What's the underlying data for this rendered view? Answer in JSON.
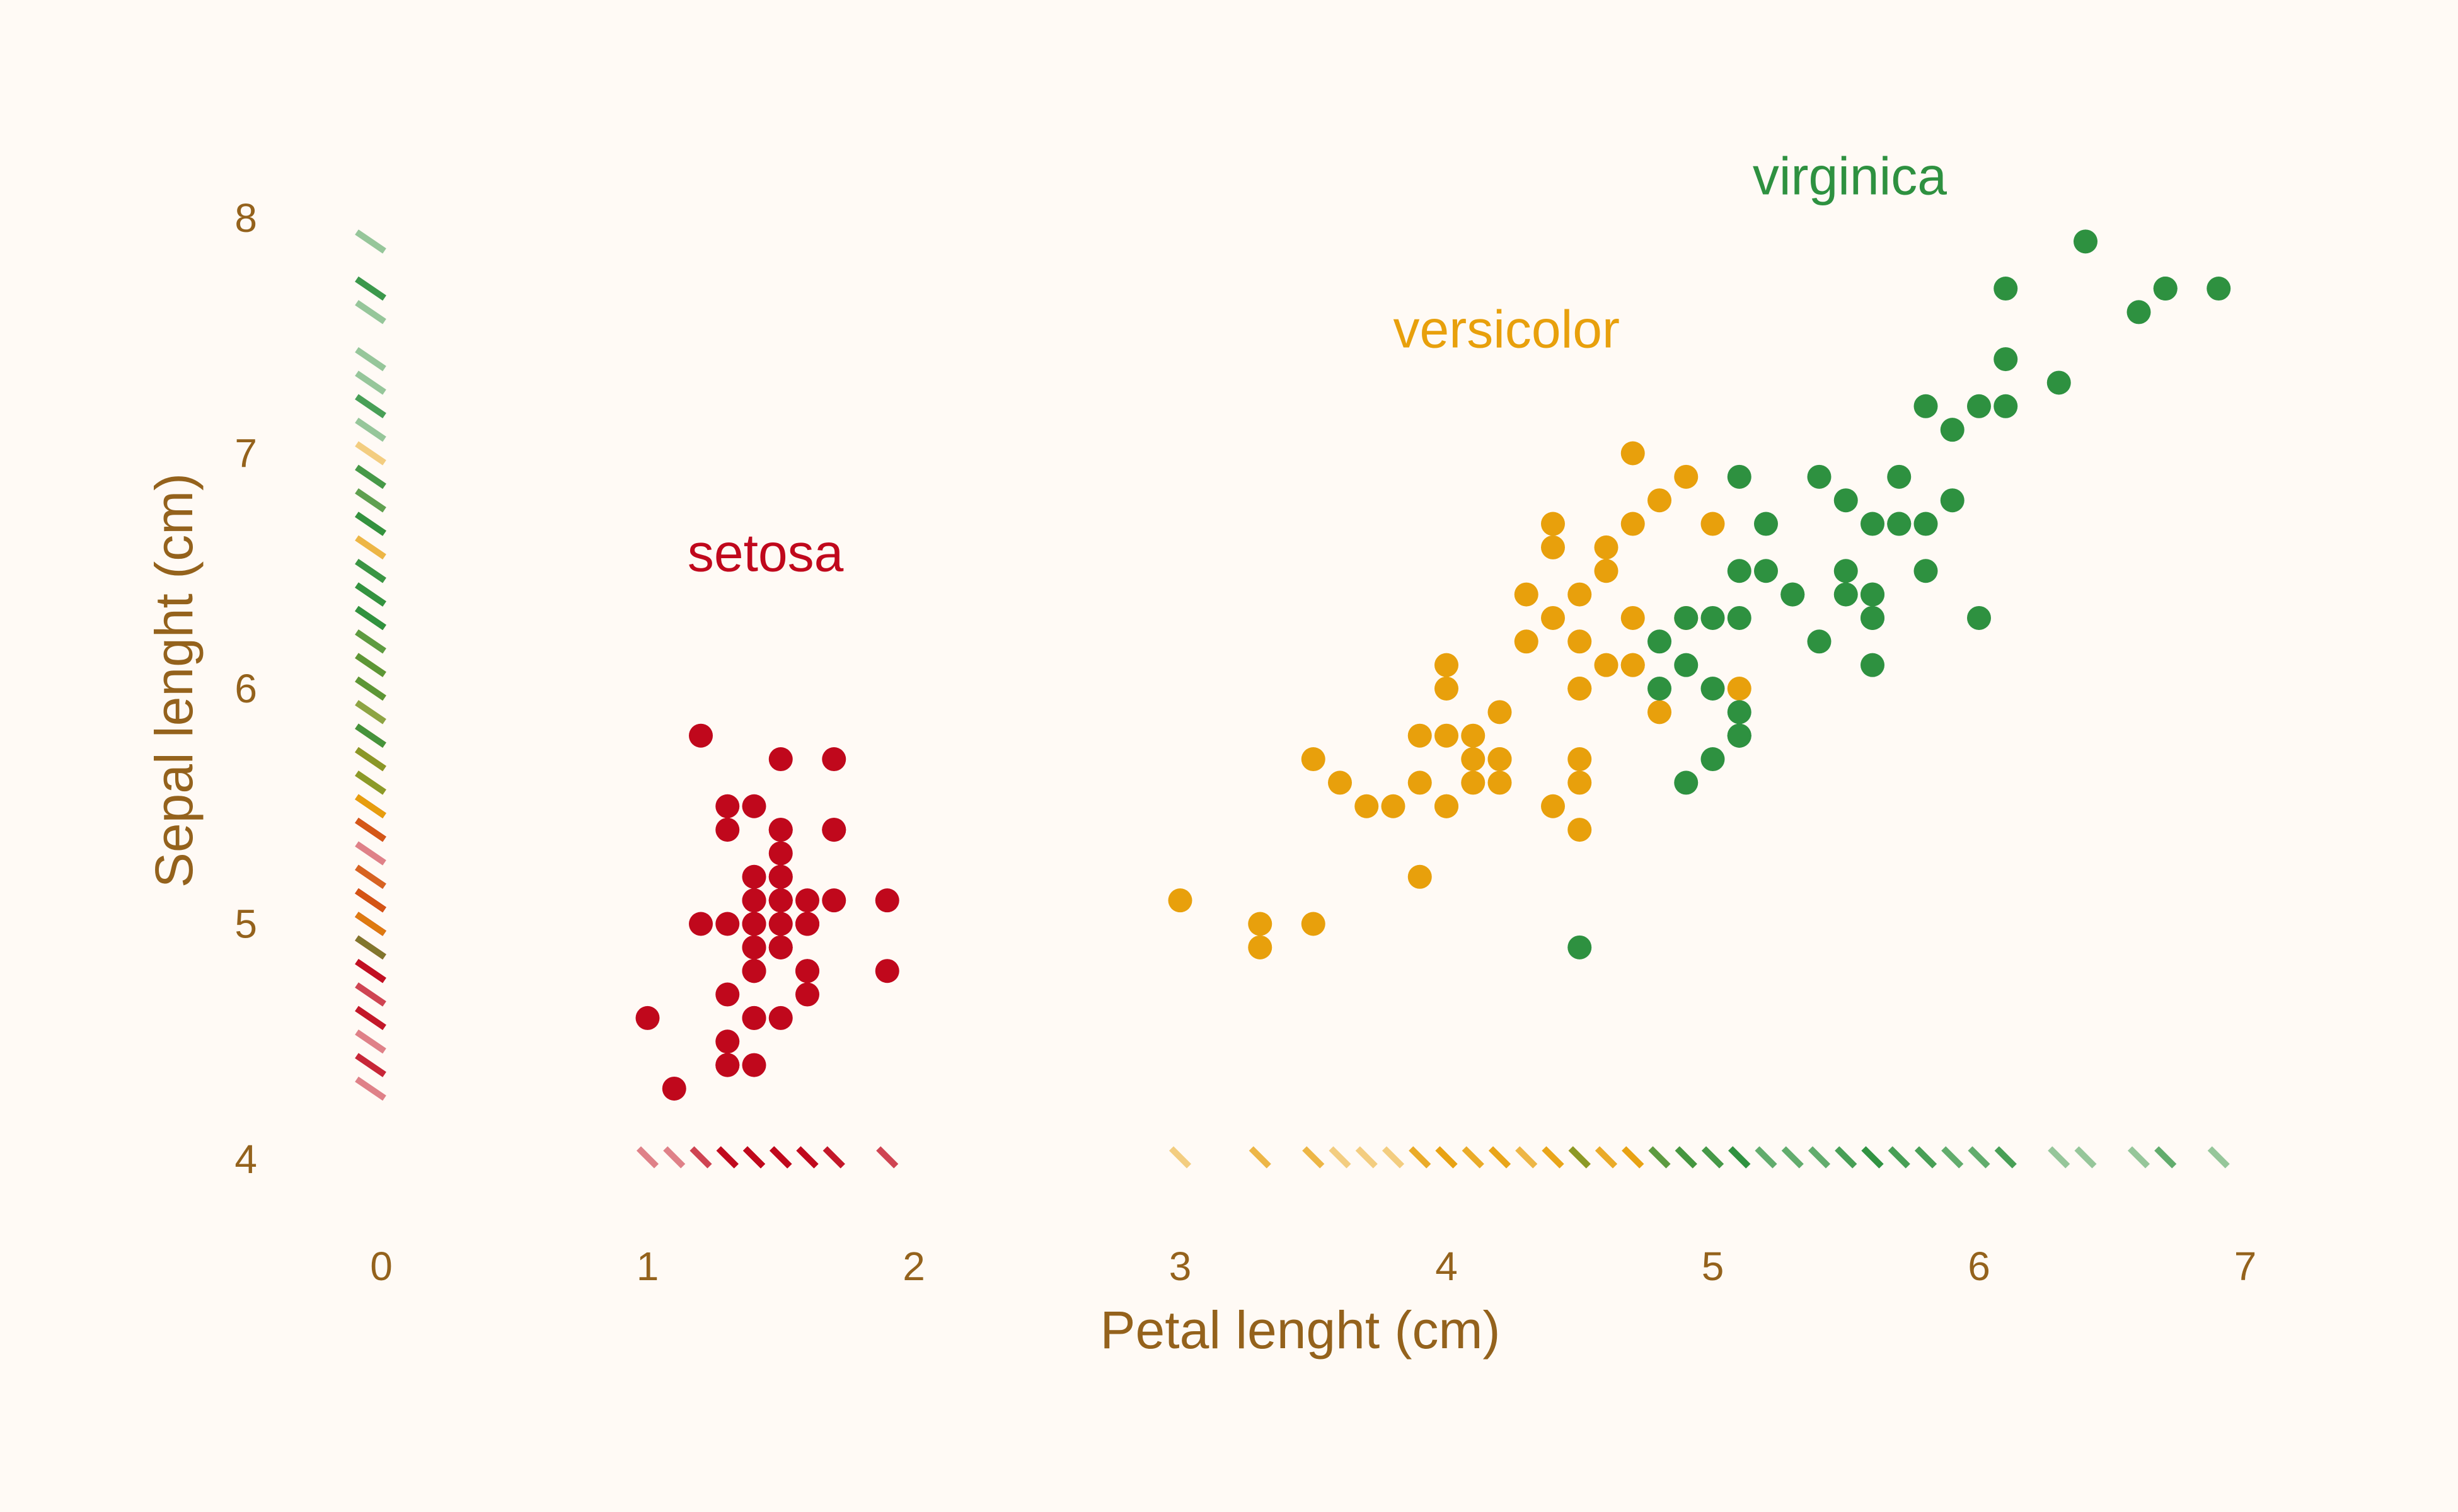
{
  "chart_data": {
    "type": "scatter",
    "title": "",
    "xlabel": "Petal lenght (cm)",
    "ylabel": "Sepal lenght (cm)",
    "xlim": [
      0,
      7
    ],
    "ylim": [
      4,
      8
    ],
    "xticks": [
      0,
      1,
      2,
      3,
      4,
      5,
      6,
      7
    ],
    "yticks": [
      4,
      5,
      6,
      7,
      8
    ],
    "grid": false,
    "legend": "none (direct labels)",
    "rug": true,
    "series": [
      {
        "name": "setosa",
        "color": "#c0081c",
        "label_pos": [
          1.15,
          6.5
        ],
        "points": [
          [
            1.4,
            5.1
          ],
          [
            1.4,
            4.9
          ],
          [
            1.3,
            4.7
          ],
          [
            1.5,
            4.6
          ],
          [
            1.4,
            5.0
          ],
          [
            1.7,
            5.4
          ],
          [
            1.4,
            4.6
          ],
          [
            1.5,
            5.0
          ],
          [
            1.4,
            4.4
          ],
          [
            1.5,
            4.9
          ],
          [
            1.5,
            5.4
          ],
          [
            1.6,
            4.8
          ],
          [
            1.4,
            4.8
          ],
          [
            1.1,
            4.3
          ],
          [
            1.2,
            5.8
          ],
          [
            1.5,
            5.7
          ],
          [
            1.3,
            5.4
          ],
          [
            1.4,
            5.1
          ],
          [
            1.7,
            5.7
          ],
          [
            1.5,
            5.1
          ],
          [
            1.7,
            5.4
          ],
          [
            1.5,
            5.1
          ],
          [
            1.0,
            4.6
          ],
          [
            1.7,
            5.1
          ],
          [
            1.9,
            4.8
          ],
          [
            1.6,
            5.0
          ],
          [
            1.6,
            5.0
          ],
          [
            1.5,
            5.2
          ],
          [
            1.4,
            5.2
          ],
          [
            1.6,
            4.7
          ],
          [
            1.6,
            4.8
          ],
          [
            1.5,
            5.4
          ],
          [
            1.5,
            5.2
          ],
          [
            1.4,
            5.5
          ],
          [
            1.5,
            4.9
          ],
          [
            1.2,
            5.0
          ],
          [
            1.3,
            5.5
          ],
          [
            1.4,
            4.9
          ],
          [
            1.3,
            4.4
          ],
          [
            1.5,
            5.1
          ],
          [
            1.3,
            5.0
          ],
          [
            1.3,
            4.5
          ],
          [
            1.3,
            4.4
          ],
          [
            1.6,
            5.0
          ],
          [
            1.9,
            5.1
          ],
          [
            1.4,
            4.8
          ],
          [
            1.6,
            5.1
          ],
          [
            1.4,
            4.6
          ],
          [
            1.5,
            5.3
          ],
          [
            1.4,
            5.0
          ]
        ]
      },
      {
        "name": "versicolor",
        "color": "#e8a00c",
        "label_pos": [
          3.8,
          7.45
        ],
        "points": [
          [
            4.7,
            7.0
          ],
          [
            4.5,
            6.4
          ],
          [
            4.9,
            6.9
          ],
          [
            4.0,
            5.5
          ],
          [
            4.6,
            6.5
          ],
          [
            4.5,
            5.7
          ],
          [
            4.7,
            6.3
          ],
          [
            3.3,
            4.9
          ],
          [
            4.6,
            6.6
          ],
          [
            3.9,
            5.2
          ],
          [
            3.5,
            5.0
          ],
          [
            4.2,
            5.9
          ],
          [
            4.0,
            6.0
          ],
          [
            4.7,
            6.1
          ],
          [
            3.6,
            5.6
          ],
          [
            4.4,
            6.7
          ],
          [
            4.5,
            5.6
          ],
          [
            4.1,
            5.8
          ],
          [
            4.5,
            6.2
          ],
          [
            3.9,
            5.6
          ],
          [
            4.8,
            5.9
          ],
          [
            4.0,
            6.1
          ],
          [
            4.9,
            6.3
          ],
          [
            4.7,
            6.1
          ],
          [
            4.3,
            6.4
          ],
          [
            4.4,
            6.6
          ],
          [
            4.8,
            6.8
          ],
          [
            5.0,
            6.7
          ],
          [
            4.5,
            6.0
          ],
          [
            3.5,
            5.7
          ],
          [
            3.8,
            5.5
          ],
          [
            3.7,
            5.5
          ],
          [
            3.9,
            5.8
          ],
          [
            5.1,
            6.0
          ],
          [
            4.5,
            5.4
          ],
          [
            4.5,
            6.0
          ],
          [
            4.7,
            6.7
          ],
          [
            4.4,
            6.3
          ],
          [
            4.1,
            5.6
          ],
          [
            4.0,
            5.5
          ],
          [
            4.4,
            5.5
          ],
          [
            4.6,
            6.1
          ],
          [
            4.0,
            5.8
          ],
          [
            3.3,
            5.0
          ],
          [
            4.2,
            5.6
          ],
          [
            4.2,
            5.7
          ],
          [
            4.2,
            5.7
          ],
          [
            4.3,
            6.2
          ],
          [
            3.0,
            5.1
          ],
          [
            4.1,
            5.7
          ]
        ]
      },
      {
        "name": "virginica",
        "color": "#2e9140",
        "label_pos": [
          5.15,
          8.1
        ],
        "points": [
          [
            6.0,
            6.3
          ],
          [
            5.1,
            5.8
          ],
          [
            5.9,
            7.1
          ],
          [
            5.6,
            6.3
          ],
          [
            5.8,
            6.5
          ],
          [
            6.6,
            7.6
          ],
          [
            4.5,
            4.9
          ],
          [
            6.3,
            7.3
          ],
          [
            5.8,
            6.7
          ],
          [
            6.1,
            7.2
          ],
          [
            5.1,
            6.5
          ],
          [
            5.3,
            6.4
          ],
          [
            5.5,
            6.8
          ],
          [
            5.0,
            5.7
          ],
          [
            5.1,
            5.8
          ],
          [
            5.3,
            6.4
          ],
          [
            5.5,
            6.5
          ],
          [
            6.7,
            7.7
          ],
          [
            6.9,
            7.7
          ],
          [
            5.0,
            6.0
          ],
          [
            5.7,
            6.9
          ],
          [
            4.9,
            5.6
          ],
          [
            6.7,
            7.7
          ],
          [
            4.9,
            6.3
          ],
          [
            5.7,
            6.7
          ],
          [
            6.0,
            7.2
          ],
          [
            4.8,
            6.2
          ],
          [
            4.9,
            6.1
          ],
          [
            5.6,
            6.4
          ],
          [
            5.8,
            7.2
          ],
          [
            6.1,
            7.4
          ],
          [
            6.4,
            7.9
          ],
          [
            5.6,
            6.4
          ],
          [
            5.1,
            6.3
          ],
          [
            5.6,
            6.1
          ],
          [
            6.1,
            7.7
          ],
          [
            5.6,
            6.3
          ],
          [
            5.5,
            6.4
          ],
          [
            4.8,
            6.0
          ],
          [
            5.4,
            6.9
          ],
          [
            5.6,
            6.7
          ],
          [
            5.1,
            6.9
          ],
          [
            5.1,
            5.8
          ],
          [
            5.9,
            6.8
          ],
          [
            5.7,
            6.7
          ],
          [
            5.2,
            6.7
          ],
          [
            5.0,
            6.3
          ],
          [
            5.2,
            6.5
          ],
          [
            5.4,
            6.2
          ],
          [
            5.1,
            5.9
          ]
        ]
      }
    ]
  }
}
